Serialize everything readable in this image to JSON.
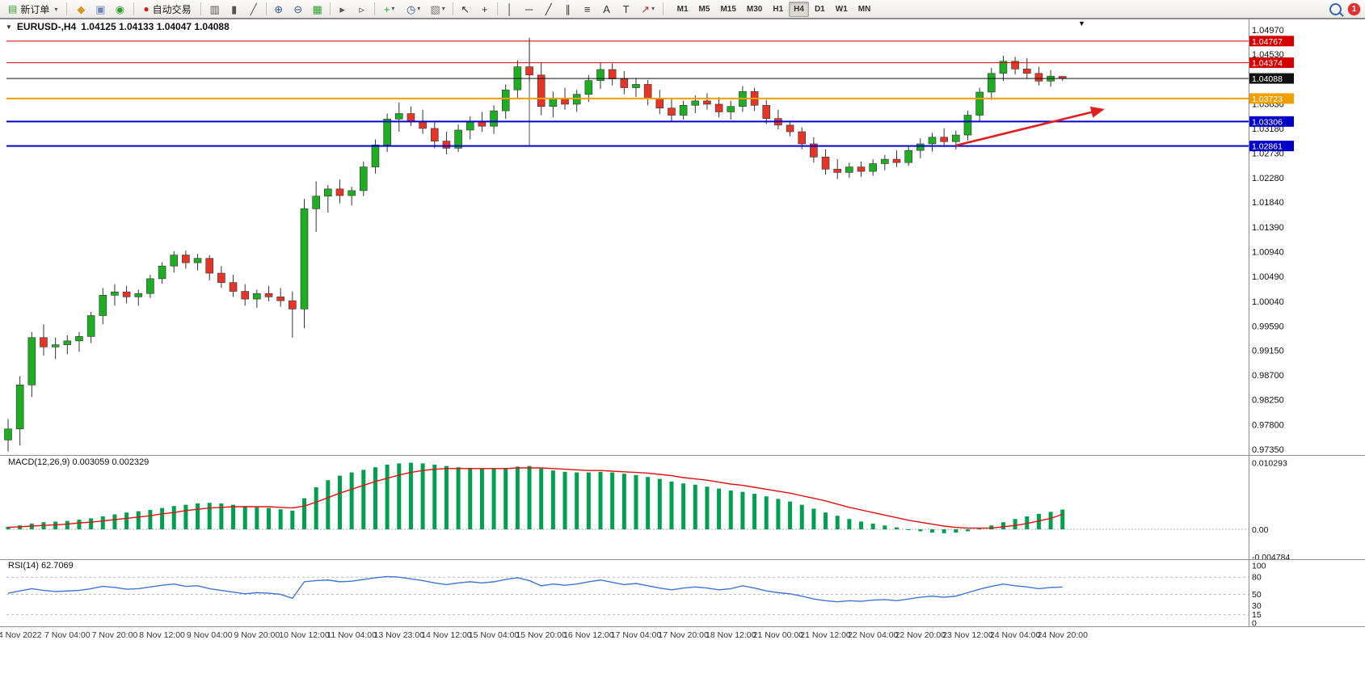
{
  "toolbar": {
    "new_order": {
      "label": "新订单",
      "icon_glyph": "▤"
    },
    "autotrade": {
      "label": "自动交易",
      "icon_glyph": "●"
    },
    "window_icons": [
      {
        "name": "navigator",
        "glyph": "◆",
        "color": "#d39a1e"
      },
      {
        "name": "market-watch",
        "glyph": "▣",
        "color": "#6b86b5"
      },
      {
        "name": "data-window",
        "glyph": "◉",
        "color": "#2f9e2f"
      }
    ],
    "tool_groups": [
      [
        {
          "name": "bar-chart",
          "glyph": "▥",
          "color": "#555555"
        },
        {
          "name": "candlestick-chart",
          "glyph": "▮",
          "color": "#555555"
        },
        {
          "name": "line-chart",
          "glyph": "╱",
          "color": "#555555"
        }
      ],
      [
        {
          "name": "zoom-in",
          "glyph": "⊕",
          "color": "#33588f"
        },
        {
          "name": "zoom-out",
          "glyph": "⊖",
          "color": "#33588f"
        },
        {
          "name": "tile-windows",
          "glyph": "▦",
          "color": "#2f9e2f"
        }
      ],
      [
        {
          "name": "auto-scroll",
          "glyph": "▸",
          "color": "#555555"
        },
        {
          "name": "chart-shift",
          "glyph": "▹",
          "color": "#555555"
        }
      ],
      [
        {
          "name": "indicators",
          "glyph": "+",
          "color": "#2f9e2f",
          "caret": true
        },
        {
          "name": "periods",
          "glyph": "◷",
          "color": "#33588f",
          "caret": true
        },
        {
          "name": "templates",
          "glyph": "▧",
          "color": "#777777",
          "caret": true
        }
      ],
      [
        {
          "name": "cursor",
          "glyph": "↖",
          "color": "#333333"
        },
        {
          "name": "crosshair",
          "glyph": "+",
          "color": "#333333"
        }
      ],
      [
        {
          "name": "vertical-line",
          "glyph": "│",
          "color": "#333333"
        },
        {
          "name": "horizontal-line",
          "glyph": "─",
          "color": "#333333"
        },
        {
          "name": "trendline",
          "glyph": "╱",
          "color": "#333333"
        },
        {
          "name": "equidistant-channel",
          "glyph": "∥",
          "color": "#333333"
        },
        {
          "name": "fibonacci",
          "glyph": "≡",
          "color": "#333333"
        },
        {
          "name": "text",
          "glyph": "A",
          "color": "#333333"
        },
        {
          "name": "text-label",
          "glyph": "T",
          "color": "#333333"
        },
        {
          "name": "arrows",
          "glyph": "↗",
          "color": "#aa3333",
          "caret": true
        }
      ]
    ],
    "timeframes": [
      "M1",
      "M5",
      "M15",
      "M30",
      "H1",
      "H4",
      "D1",
      "W1",
      "MN"
    ],
    "active_timeframe": "H4",
    "notification_count": "1"
  },
  "chart": {
    "symbol_period": "EURUSD-,H4",
    "ohlc": "1.04125 1.04133 1.04047 1.04088",
    "collapse_glyph": "▼",
    "context_glyph": "▼"
  },
  "price_scale": {
    "ticks": [
      "1.04970",
      "1.04530",
      "1.03630",
      "1.03180",
      "1.02730",
      "1.02280",
      "1.01840",
      "1.01390",
      "1.00940",
      "1.00490",
      "1.00040",
      "0.99590",
      "0.99150",
      "0.98700",
      "0.98250",
      "0.97800",
      "0.97350"
    ],
    "badges": [
      {
        "label": "1.04767",
        "price": 1.04767,
        "color": "#d40000"
      },
      {
        "label": "1.04374",
        "price": 1.04374,
        "color": "#d40000"
      },
      {
        "label": "1.04088",
        "price": 1.04088,
        "color": "#101010"
      },
      {
        "label": "1.03723",
        "price": 1.03723,
        "color": "#ef9f00"
      },
      {
        "label": "1.03306",
        "price": 1.03306,
        "color": "#0000c8"
      },
      {
        "label": "1.02861",
        "price": 1.02861,
        "color": "#0000c8"
      }
    ]
  },
  "macd": {
    "label": "MACD(12,26,9) 0.003059 0.002329",
    "scale": [
      "0.010293",
      "0.00",
      "-0.004784"
    ]
  },
  "rsi": {
    "label": "RSI(14) 62.7069",
    "scale": [
      "100",
      "80",
      "50",
      "30",
      "15",
      "0"
    ]
  },
  "time_axis": [
    "4 Nov 2022",
    "7 Nov 04:00",
    "7 Nov 20:00",
    "8 Nov 12:00",
    "9 Nov 04:00",
    "9 Nov 20:00",
    "10 Nov 12:00",
    "11 Nov 04:00",
    "13 Nov 23:00",
    "14 Nov 12:00",
    "15 Nov 04:00",
    "15 Nov 20:00",
    "16 Nov 12:00",
    "17 Nov 04:00",
    "17 Nov 20:00",
    "18 Nov 12:00",
    "21 Nov 00:00",
    "21 Nov 12:00",
    "22 Nov 04:00",
    "22 Nov 20:00",
    "23 Nov 12:00",
    "24 Nov 04:00",
    "24 Nov 20:00"
  ],
  "chart_data": [
    {
      "type": "candlestick",
      "panel": "main",
      "symbol": "EURUSD-",
      "timeframe": "H4",
      "ylim": [
        0.9735,
        1.0497
      ],
      "up_color": "#1fad24",
      "down_color": "#e53528",
      "candles": [
        [
          0.9752,
          0.979,
          0.9731,
          0.9772
        ],
        [
          0.9772,
          0.9868,
          0.9742,
          0.9852
        ],
        [
          0.9852,
          0.9948,
          0.983,
          0.9938
        ],
        [
          0.9938,
          0.9962,
          0.9905,
          0.9921
        ],
        [
          0.9921,
          0.9938,
          0.9899,
          0.9925
        ],
        [
          0.9925,
          0.9942,
          0.9908,
          0.9932
        ],
        [
          0.9932,
          0.9948,
          0.9912,
          0.994
        ],
        [
          0.994,
          0.9985,
          0.9928,
          0.9978
        ],
        [
          0.9978,
          1.0028,
          0.9962,
          1.0015
        ],
        [
          1.0015,
          1.0035,
          0.9996,
          1.0021
        ],
        [
          1.0021,
          1.0032,
          1.0,
          1.0012
        ],
        [
          1.0012,
          1.0025,
          0.9996,
          1.0018
        ],
        [
          1.0018,
          1.0052,
          1.001,
          1.0045
        ],
        [
          1.0045,
          1.0075,
          1.0036,
          1.0068
        ],
        [
          1.0068,
          1.0095,
          1.0056,
          1.0088
        ],
        [
          1.0088,
          1.0096,
          1.0063,
          1.0074
        ],
        [
          1.0074,
          1.009,
          1.006,
          1.0082
        ],
        [
          1.0082,
          1.0088,
          1.0042,
          1.0055
        ],
        [
          1.0055,
          1.0068,
          1.0028,
          1.0038
        ],
        [
          1.0038,
          1.0052,
          1.0012,
          1.0022
        ],
        [
          1.0022,
          1.0035,
          0.9996,
          1.0008
        ],
        [
          1.0008,
          1.0025,
          0.9992,
          1.0018
        ],
        [
          1.0018,
          1.0032,
          1.0004,
          1.0012
        ],
        [
          1.0012,
          1.0028,
          0.9994,
          1.0005
        ],
        [
          1.0005,
          1.0022,
          0.9938,
          0.999
        ],
        [
          0.999,
          1.019,
          0.9955,
          1.0172
        ],
        [
          1.0172,
          1.0222,
          1.013,
          1.0195
        ],
        [
          1.0195,
          1.0215,
          1.0165,
          1.0208
        ],
        [
          1.0208,
          1.0225,
          1.0182,
          1.0196
        ],
        [
          1.0196,
          1.0212,
          1.0178,
          1.0205
        ],
        [
          1.0205,
          1.0258,
          1.0195,
          1.0248
        ],
        [
          1.0248,
          1.0298,
          1.0236,
          1.0288
        ],
        [
          1.0288,
          1.0345,
          1.0275,
          1.0335
        ],
        [
          1.0335,
          1.0365,
          1.0312,
          1.0345
        ],
        [
          1.0345,
          1.0358,
          1.0322,
          1.033
        ],
        [
          1.033,
          1.0352,
          1.0308,
          1.0318
        ],
        [
          1.0318,
          1.0332,
          1.0282,
          1.0295
        ],
        [
          1.0295,
          1.0312,
          1.0271,
          1.0282
        ],
        [
          1.0282,
          1.0325,
          1.0275,
          1.0315
        ],
        [
          1.0315,
          1.034,
          1.0298,
          1.033
        ],
        [
          1.033,
          1.0348,
          1.0312,
          1.0322
        ],
        [
          1.0322,
          1.036,
          1.0308,
          1.035
        ],
        [
          1.035,
          1.0398,
          1.0335,
          1.0388
        ],
        [
          1.0388,
          1.0442,
          1.0372,
          1.043
        ],
        [
          1.043,
          1.0481,
          1.0402,
          1.0415
        ],
        [
          1.0415,
          1.0438,
          1.0342,
          1.0358
        ],
        [
          1.0358,
          1.0385,
          1.0338,
          1.0372
        ],
        [
          1.0372,
          1.0392,
          1.0352,
          1.0362
        ],
        [
          1.0362,
          1.0388,
          1.0348,
          1.038
        ],
        [
          1.038,
          1.0415,
          1.0366,
          1.0405
        ],
        [
          1.0405,
          1.0438,
          1.039,
          1.0425
        ],
        [
          1.0425,
          1.0436,
          1.0396,
          1.0408
        ],
        [
          1.0408,
          1.0422,
          1.038,
          1.0392
        ],
        [
          1.0392,
          1.041,
          1.0375,
          1.0398
        ],
        [
          1.0398,
          1.0406,
          1.036,
          1.0372
        ],
        [
          1.0372,
          1.0388,
          1.0344,
          1.0355
        ],
        [
          1.0355,
          1.0372,
          1.033,
          1.0342
        ],
        [
          1.0342,
          1.0368,
          1.0334,
          1.036
        ],
        [
          1.036,
          1.0378,
          1.0346,
          1.0368
        ],
        [
          1.0368,
          1.0382,
          1.0352,
          1.0362
        ],
        [
          1.0362,
          1.0375,
          1.0338,
          1.0348
        ],
        [
          1.0348,
          1.0368,
          1.0334,
          1.0358
        ],
        [
          1.0358,
          1.0395,
          1.0348,
          1.0385
        ],
        [
          1.0385,
          1.0392,
          1.035,
          1.036
        ],
        [
          1.036,
          1.037,
          1.0326,
          1.0336
        ],
        [
          1.0336,
          1.0352,
          1.0316,
          1.0324
        ],
        [
          1.0324,
          1.0332,
          1.0304,
          1.0312
        ],
        [
          1.0312,
          1.032,
          1.028,
          1.029
        ],
        [
          1.029,
          1.0302,
          1.0256,
          1.0266
        ],
        [
          1.0266,
          1.028,
          1.0234,
          1.0244
        ],
        [
          1.0244,
          1.0262,
          1.0226,
          1.0238
        ],
        [
          1.0238,
          1.0256,
          1.0228,
          1.0248
        ],
        [
          1.0248,
          1.0258,
          1.023,
          1.024
        ],
        [
          1.024,
          1.0262,
          1.0232,
          1.0254
        ],
        [
          1.0254,
          1.027,
          1.0242,
          1.0262
        ],
        [
          1.0262,
          1.0278,
          1.0248,
          1.0256
        ],
        [
          1.0256,
          1.0286,
          1.025,
          1.0278
        ],
        [
          1.0278,
          1.03,
          1.0264,
          1.029
        ],
        [
          1.029,
          1.031,
          1.0276,
          1.0302
        ],
        [
          1.0302,
          1.0318,
          1.0284,
          1.0294
        ],
        [
          1.0294,
          1.0314,
          1.028,
          1.0306
        ],
        [
          1.0306,
          1.035,
          1.0296,
          1.0342
        ],
        [
          1.0342,
          1.0392,
          1.033,
          1.0384
        ],
        [
          1.0384,
          1.0428,
          1.037,
          1.0418
        ],
        [
          1.0418,
          1.045,
          1.0404,
          1.044
        ],
        [
          1.044,
          1.0448,
          1.0416,
          1.0426
        ],
        [
          1.0426,
          1.0446,
          1.0408,
          1.0418
        ],
        [
          1.0418,
          1.043,
          1.0396,
          1.0404
        ],
        [
          1.0404,
          1.0424,
          1.0394,
          1.0413
        ],
        [
          1.04125,
          1.04133,
          1.04047,
          1.04088
        ]
      ],
      "hlines": [
        {
          "price": 1.04767,
          "color": "#d40000",
          "width": 1
        },
        {
          "price": 1.04374,
          "color": "#d40000",
          "width": 1
        },
        {
          "price": 1.04088,
          "color": "#101010",
          "width": 1
        },
        {
          "price": 1.03723,
          "color": "#ef9f00",
          "width": 2
        },
        {
          "price": 1.03306,
          "color": "#0000c8",
          "width": 2
        },
        {
          "price": 1.02861,
          "color": "#0000c8",
          "width": 2
        }
      ],
      "vline": {
        "at_candle": 44,
        "from_price": 1.0483,
        "to_price": 1.0286,
        "color": "#555555"
      },
      "arrow": {
        "from_candle": 80,
        "from_price": 1.0287,
        "to_candle": 92.3,
        "to_price": 1.0352,
        "color": "#e02020"
      }
    },
    {
      "type": "bar",
      "panel": "macd",
      "name": "MACD(12,26,9)",
      "ylim": [
        -0.004784,
        0.010293
      ],
      "bar_color": "#00a050",
      "signal_color": "#e01010",
      "histogram": [
        0.0004,
        0.0006,
        0.0009,
        0.0011,
        0.0012,
        0.0013,
        0.0015,
        0.0017,
        0.002,
        0.0023,
        0.0026,
        0.0028,
        0.003,
        0.0033,
        0.0036,
        0.0038,
        0.004,
        0.0041,
        0.004,
        0.0038,
        0.0036,
        0.0034,
        0.0033,
        0.0031,
        0.0029,
        0.0048,
        0.0065,
        0.0076,
        0.0083,
        0.0088,
        0.0092,
        0.0096,
        0.01,
        0.0102,
        0.0103,
        0.0102,
        0.01,
        0.0098,
        0.0096,
        0.0095,
        0.0094,
        0.0094,
        0.0095,
        0.0097,
        0.0098,
        0.0094,
        0.0091,
        0.0089,
        0.0088,
        0.0088,
        0.0089,
        0.0088,
        0.0086,
        0.0084,
        0.0081,
        0.0078,
        0.0074,
        0.0071,
        0.0069,
        0.0066,
        0.0063,
        0.006,
        0.0058,
        0.0055,
        0.0051,
        0.0047,
        0.0043,
        0.0038,
        0.0032,
        0.0026,
        0.0021,
        0.0016,
        0.0012,
        0.0009,
        0.0006,
        0.0003,
        0.0,
        -0.0003,
        -0.0005,
        -0.0006,
        -0.0005,
        -0.0003,
        0.0001,
        0.0006,
        0.0011,
        0.0016,
        0.002,
        0.0024,
        0.0027,
        0.003059
      ],
      "signal": [
        0.0003,
        0.0004,
        0.0005,
        0.0006,
        0.0007,
        0.0008,
        0.001,
        0.0011,
        0.0013,
        0.0015,
        0.0017,
        0.0019,
        0.0021,
        0.0024,
        0.0026,
        0.0029,
        0.0031,
        0.0033,
        0.0034,
        0.0035,
        0.0035,
        0.0035,
        0.0035,
        0.0034,
        0.0033,
        0.0036,
        0.0042,
        0.0049,
        0.0056,
        0.0062,
        0.0068,
        0.0074,
        0.0079,
        0.0084,
        0.0088,
        0.0091,
        0.0093,
        0.0094,
        0.0094,
        0.0094,
        0.0094,
        0.0094,
        0.0094,
        0.0095,
        0.0095,
        0.0095,
        0.0094,
        0.0093,
        0.0092,
        0.0091,
        0.0091,
        0.009,
        0.0089,
        0.0088,
        0.0087,
        0.0085,
        0.0083,
        0.008,
        0.0078,
        0.0076,
        0.0073,
        0.007,
        0.0068,
        0.0065,
        0.0062,
        0.0059,
        0.0056,
        0.0052,
        0.0048,
        0.0044,
        0.0039,
        0.0034,
        0.003,
        0.0026,
        0.0022,
        0.0018,
        0.0014,
        0.0011,
        0.0008,
        0.0005,
        0.0003,
        0.0002,
        0.0002,
        0.0002,
        0.0004,
        0.0006,
        0.0009,
        0.0013,
        0.0017,
        0.002329
      ]
    },
    {
      "type": "line",
      "panel": "rsi",
      "name": "RSI(14)",
      "ylim": [
        0,
        100
      ],
      "line_color": "#3f76d2",
      "levels": [
        80,
        50,
        15
      ],
      "values": [
        52,
        56,
        60,
        57,
        55,
        56,
        57,
        60,
        64,
        62,
        59,
        60,
        63,
        66,
        68,
        64,
        65,
        60,
        57,
        54,
        51,
        53,
        52,
        50,
        43,
        72,
        74,
        75,
        72,
        73,
        76,
        79,
        81,
        80,
        77,
        74,
        70,
        67,
        70,
        72,
        70,
        72,
        76,
        79,
        74,
        65,
        68,
        66,
        68,
        72,
        75,
        71,
        67,
        69,
        65,
        61,
        58,
        61,
        63,
        61,
        58,
        60,
        65,
        61,
        56,
        53,
        51,
        47,
        42,
        39,
        37,
        39,
        38,
        40,
        41,
        39,
        42,
        45,
        47,
        45,
        47,
        53,
        59,
        64,
        68,
        65,
        63,
        60,
        62,
        62.7
      ]
    }
  ]
}
